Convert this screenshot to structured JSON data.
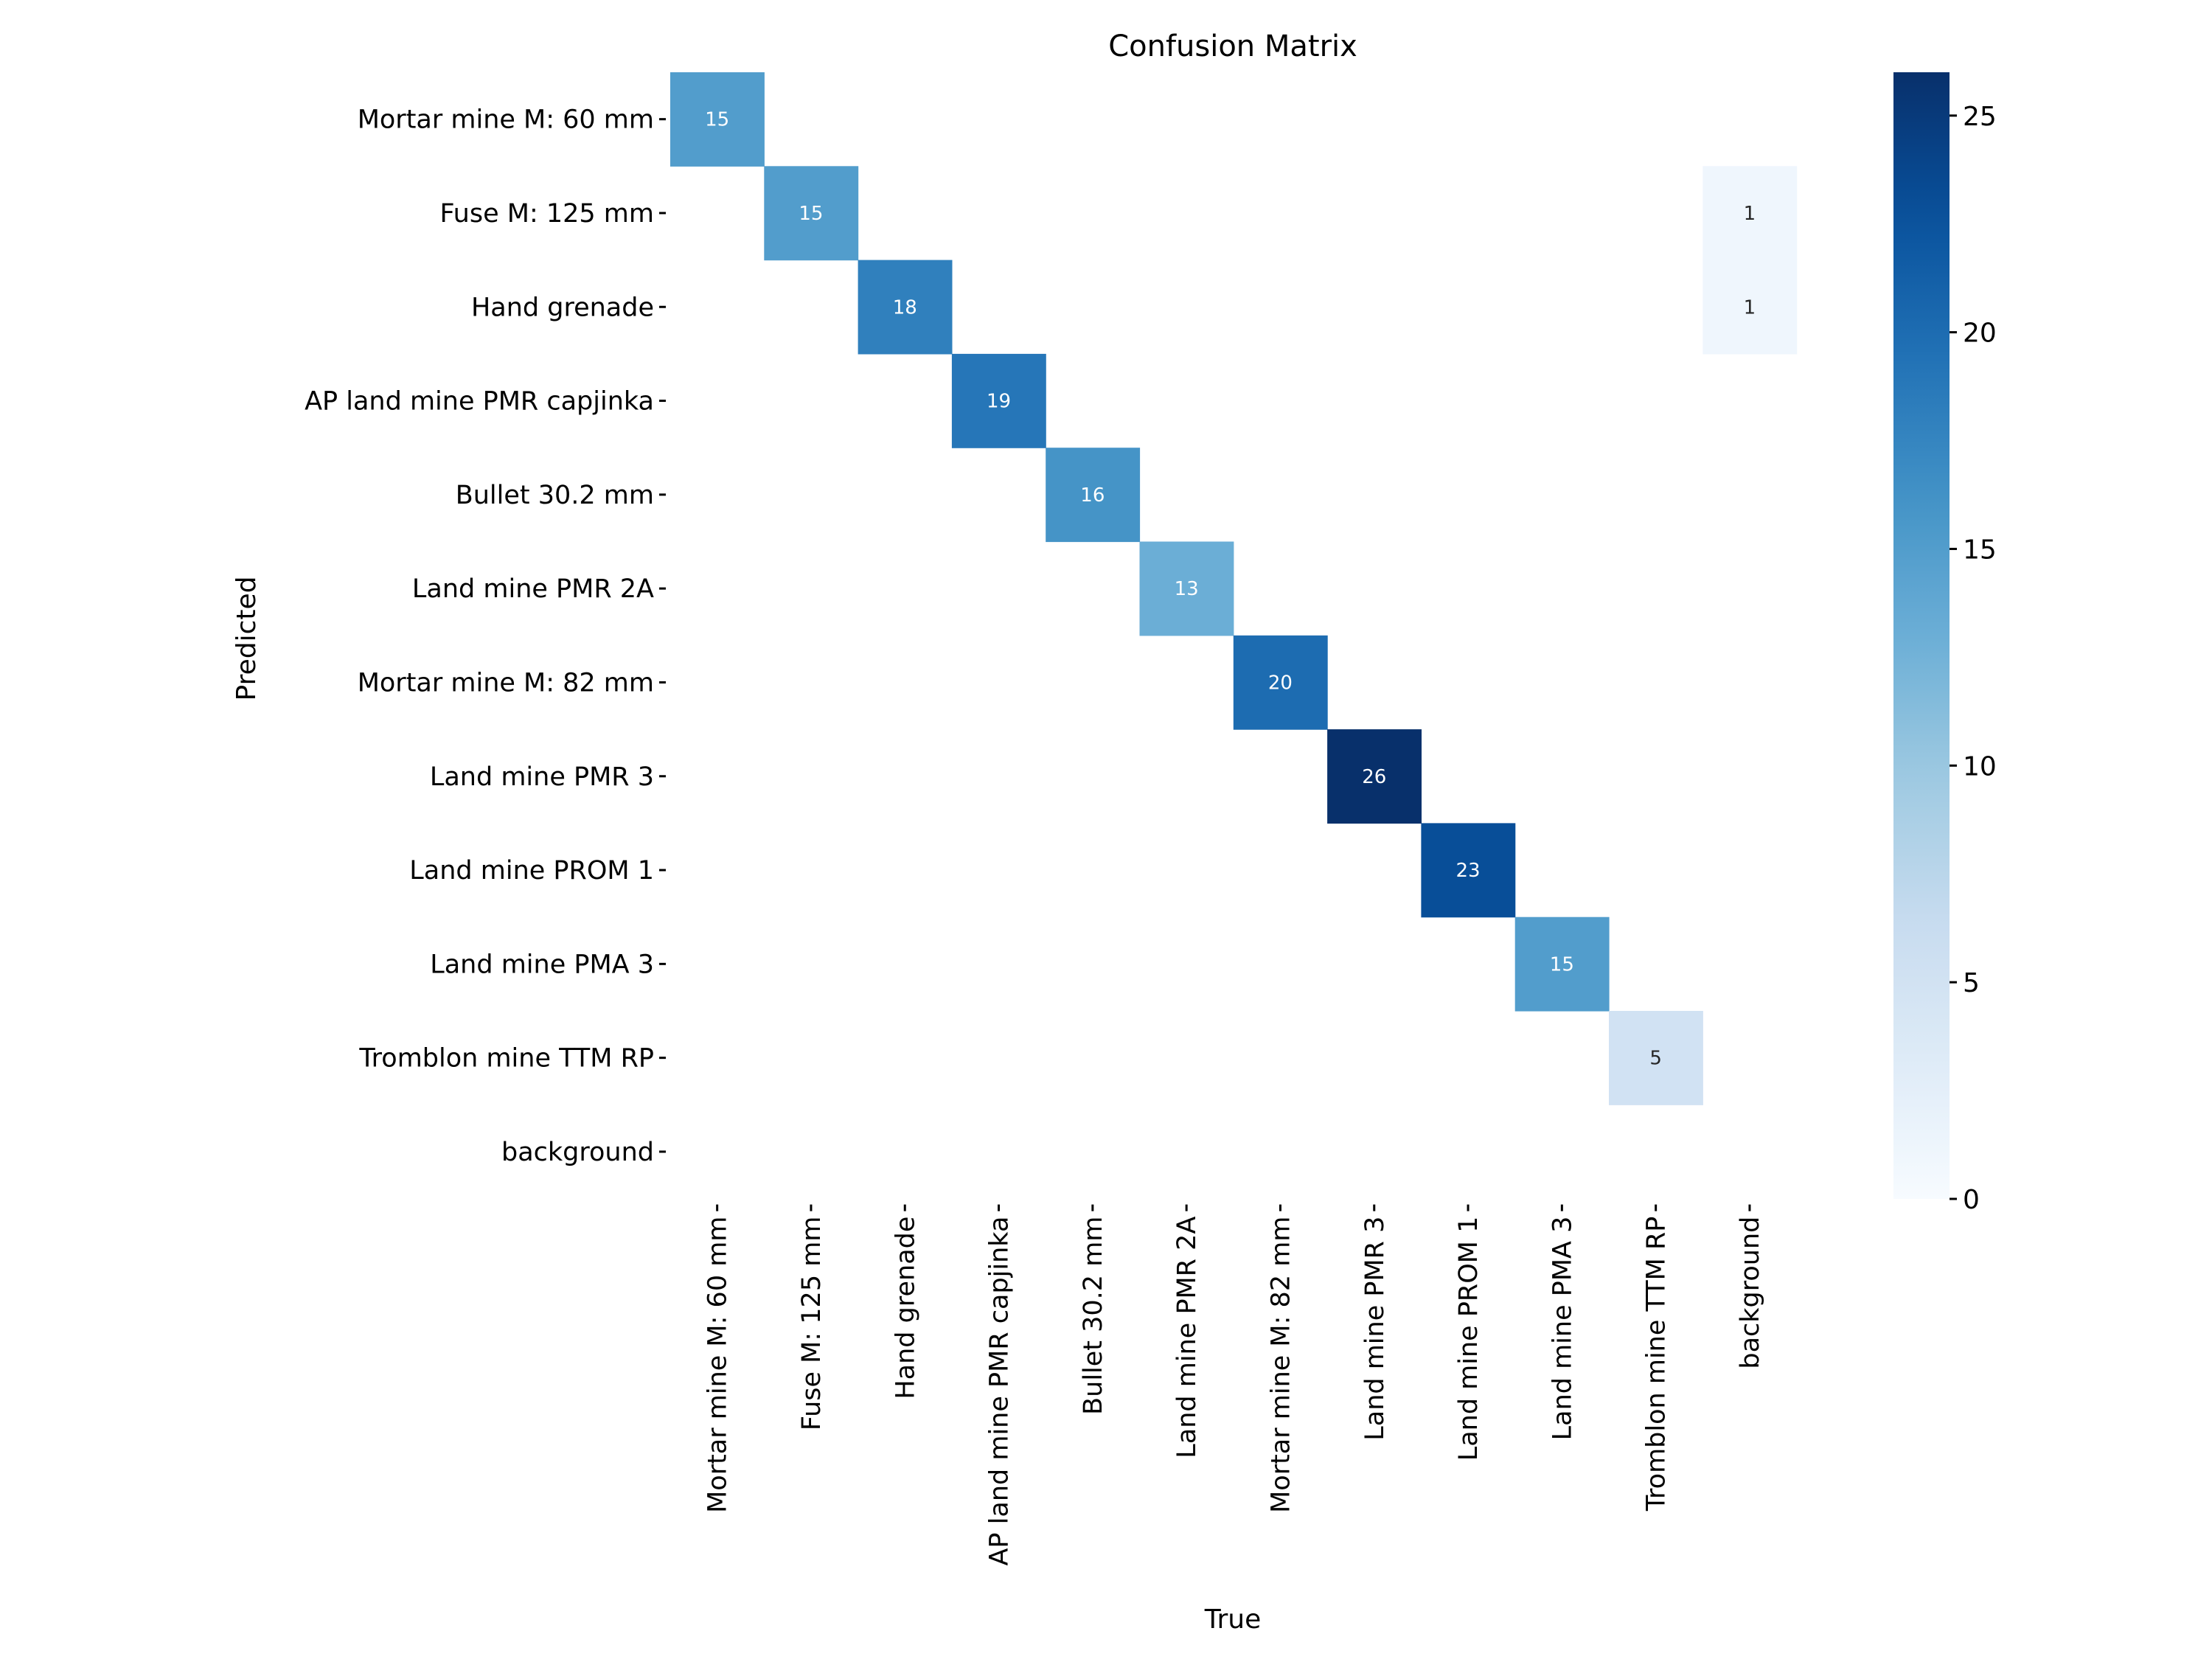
{
  "chart_data": {
    "type": "heatmap",
    "title": "Confusion Matrix",
    "xlabel": "True",
    "ylabel": "Predicted",
    "categories": [
      "Mortar mine M: 60 mm",
      "Fuse M: 125 mm",
      "Hand grenade",
      "AP land mine PMR capjinka",
      "Bullet 30.2 mm",
      "Land mine PMR 2A",
      "Mortar mine M: 82 mm",
      "Land mine PMR 3",
      "Land mine PROM 1",
      "Land mine PMA 3",
      "Tromblon mine TTM RP",
      "background"
    ],
    "matrix": [
      [
        15,
        0,
        0,
        0,
        0,
        0,
        0,
        0,
        0,
        0,
        0,
        0
      ],
      [
        0,
        15,
        0,
        0,
        0,
        0,
        0,
        0,
        0,
        0,
        0,
        1
      ],
      [
        0,
        0,
        18,
        0,
        0,
        0,
        0,
        0,
        0,
        0,
        0,
        1
      ],
      [
        0,
        0,
        0,
        19,
        0,
        0,
        0,
        0,
        0,
        0,
        0,
        0
      ],
      [
        0,
        0,
        0,
        0,
        16,
        0,
        0,
        0,
        0,
        0,
        0,
        0
      ],
      [
        0,
        0,
        0,
        0,
        0,
        13,
        0,
        0,
        0,
        0,
        0,
        0
      ],
      [
        0,
        0,
        0,
        0,
        0,
        0,
        20,
        0,
        0,
        0,
        0,
        0
      ],
      [
        0,
        0,
        0,
        0,
        0,
        0,
        0,
        26,
        0,
        0,
        0,
        0
      ],
      [
        0,
        0,
        0,
        0,
        0,
        0,
        0,
        0,
        23,
        0,
        0,
        0
      ],
      [
        0,
        0,
        0,
        0,
        0,
        0,
        0,
        0,
        0,
        15,
        0,
        0
      ],
      [
        0,
        0,
        0,
        0,
        0,
        0,
        0,
        0,
        0,
        0,
        5,
        0
      ],
      [
        0,
        0,
        0,
        0,
        0,
        0,
        0,
        0,
        0,
        0,
        0,
        0
      ]
    ],
    "zero_cells_shown": false,
    "colormap": "Blues",
    "colorbar": {
      "range": [
        0,
        26
      ],
      "ticks": [
        0,
        5,
        10,
        15,
        20,
        25
      ]
    },
    "grid": false,
    "legend": "none"
  }
}
